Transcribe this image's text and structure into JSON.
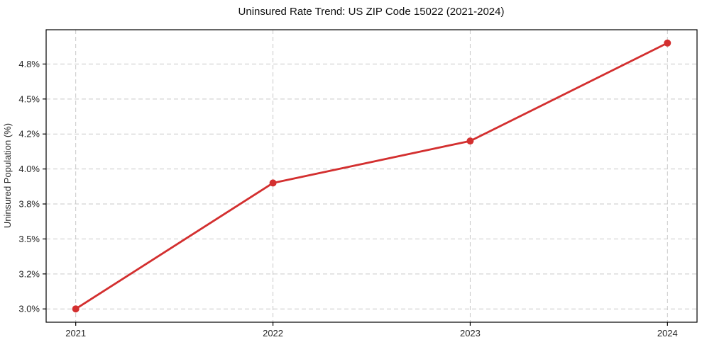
{
  "chart_data": {
    "type": "line",
    "title": "Uninsured Rate Trend: US ZIP Code 15022 (2021-2024)",
    "xlabel": "",
    "ylabel": "Uninsured Population (%)",
    "x": [
      2021,
      2022,
      2023,
      2024
    ],
    "x_tick_labels": [
      "2021",
      "2022",
      "2023",
      "2024"
    ],
    "series": [
      {
        "name": "uninsured-rate",
        "values": [
          3.0,
          3.9,
          4.2,
          4.9
        ]
      }
    ],
    "y_ticks": [
      {
        "value": 3.0,
        "label": "3.0%"
      },
      {
        "value": 3.25,
        "label": "3.2%"
      },
      {
        "value": 3.5,
        "label": "3.5%"
      },
      {
        "value": 3.75,
        "label": "3.8%"
      },
      {
        "value": 4.0,
        "label": "4.0%"
      },
      {
        "value": 4.25,
        "label": "4.2%"
      },
      {
        "value": 4.5,
        "label": "4.5%"
      },
      {
        "value": 4.75,
        "label": "4.8%"
      }
    ],
    "xlim": [
      2020.85,
      2024.15
    ],
    "ylim": [
      2.905,
      4.995
    ],
    "grid": "dashed-both",
    "legend": "none",
    "colors": {
      "line": "#d32f2f",
      "marker": "#d32f2f",
      "grid": "#c9c9c9",
      "spine": "#000000",
      "text": "#1a1a1a",
      "background": "#ffffff"
    }
  }
}
